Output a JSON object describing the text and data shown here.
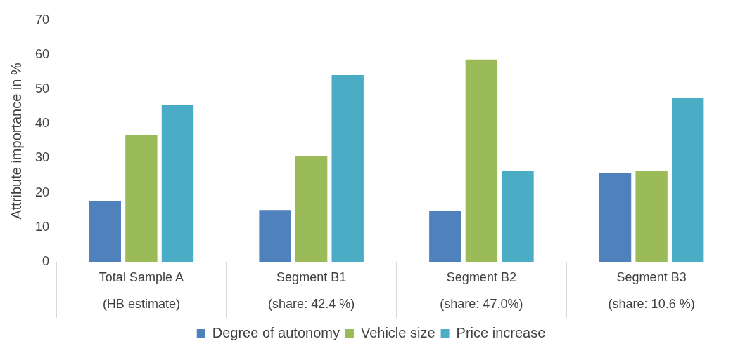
{
  "chart_data": {
    "type": "bar",
    "ylabel": "Attribute importance in %",
    "categories": [
      "Total Sample A\n(HB estimate)",
      "Segment B1\n(share: 42.4 %)",
      "Segment B2\n(share: 47.0%)",
      "Segment B3\n(share: 10.6 %)"
    ],
    "series": [
      {
        "name": "Degree of autonomy",
        "color": "#4f81bd",
        "values": [
          17.6,
          15.0,
          14.8,
          25.8
        ]
      },
      {
        "name": "Vehicle size",
        "color": "#9bbb59",
        "values": [
          36.8,
          30.6,
          58.6,
          26.4
        ]
      },
      {
        "name": "Price increase",
        "color": "#4bacc6",
        "values": [
          45.5,
          54.1,
          26.3,
          47.4
        ]
      }
    ],
    "ylim": [
      0,
      70
    ],
    "yticks": [
      0,
      10,
      20,
      30,
      40,
      50,
      60,
      70
    ],
    "grid": false,
    "legend": "bottom"
  }
}
